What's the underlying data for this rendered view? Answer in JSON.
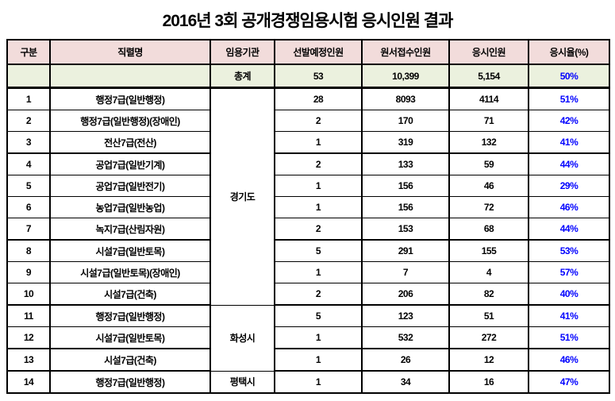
{
  "title": "2016년 3회 공개경쟁임용시험 응시인원 결과",
  "colors": {
    "header_bg": "#F2DCDB",
    "total_row_bg": "#EBF1DE",
    "rate_text": "#0000FF",
    "border": "#000000"
  },
  "table": {
    "columns": [
      "구분",
      "직렬명",
      "임용기관",
      "선발예정인원",
      "원서접수인원",
      "응시인원",
      "응시율(%)"
    ],
    "total_row": {
      "no": "",
      "series": "",
      "label": "총계",
      "planned": "53",
      "applied": "10,399",
      "attended": "5,154",
      "rate": "50%"
    },
    "rows": [
      {
        "no": "1",
        "series": "행정7급(일반행정)",
        "agency": "경기도",
        "agency_span": 10,
        "planned": "28",
        "applied": "8093",
        "attended": "4114",
        "rate": "51%"
      },
      {
        "no": "2",
        "series": "행정7급(일반행정)(장애인)",
        "planned": "2",
        "applied": "170",
        "attended": "71",
        "rate": "42%"
      },
      {
        "no": "3",
        "series": "전산7급(전산)",
        "planned": "1",
        "applied": "319",
        "attended": "132",
        "rate": "41%",
        "group_end": true
      },
      {
        "no": "4",
        "series": "공업7급(일반기계)",
        "planned": "2",
        "applied": "133",
        "attended": "59",
        "rate": "44%"
      },
      {
        "no": "5",
        "series": "공업7급(일반전기)",
        "planned": "1",
        "applied": "156",
        "attended": "46",
        "rate": "29%"
      },
      {
        "no": "6",
        "series": "농업7급(일반농업)",
        "planned": "1",
        "applied": "156",
        "attended": "72",
        "rate": "46%"
      },
      {
        "no": "7",
        "series": "녹지7급(산림자원)",
        "planned": "2",
        "applied": "153",
        "attended": "68",
        "rate": "44%",
        "group_end": true
      },
      {
        "no": "8",
        "series": "시설7급(일반토목)",
        "planned": "5",
        "applied": "291",
        "attended": "155",
        "rate": "53%"
      },
      {
        "no": "9",
        "series": "시설7급(일반토목)(장애인)",
        "planned": "1",
        "applied": "7",
        "attended": "4",
        "rate": "57%"
      },
      {
        "no": "10",
        "series": "시설7급(건축)",
        "planned": "2",
        "applied": "206",
        "attended": "82",
        "rate": "40%",
        "group_end": true
      },
      {
        "no": "11",
        "series": "행정7급(일반행정)",
        "agency": "화성시",
        "agency_span": 3,
        "planned": "5",
        "applied": "123",
        "attended": "51",
        "rate": "41%"
      },
      {
        "no": "12",
        "series": "시설7급(일반토목)",
        "planned": "1",
        "applied": "532",
        "attended": "272",
        "rate": "51%",
        "group_end": true
      },
      {
        "no": "13",
        "series": "시설7급(건축)",
        "planned": "1",
        "applied": "26",
        "attended": "12",
        "rate": "46%",
        "group_end": true
      },
      {
        "no": "14",
        "series": "행정7급(일반행정)",
        "agency": "평택시",
        "agency_span": 1,
        "planned": "1",
        "applied": "34",
        "attended": "16",
        "rate": "47%"
      }
    ]
  }
}
